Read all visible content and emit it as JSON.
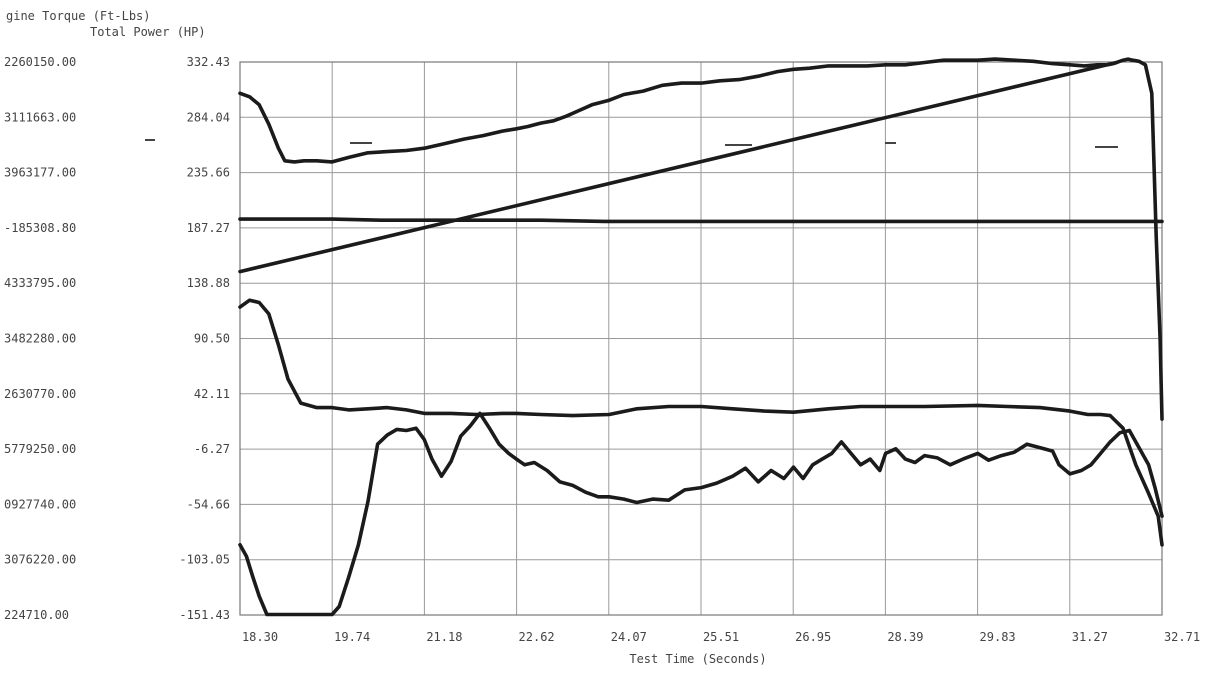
{
  "chart_data": {
    "type": "line",
    "title": "",
    "xlabel": "Test Time (Seconds)",
    "ylabel_left": "gine Torque (Ft-Lbs)",
    "ylabel_right": "Total Power (HP)",
    "x_ticks": [
      "18.30",
      "19.74",
      "21.18",
      "22.62",
      "24.07",
      "25.51",
      "26.95",
      "28.39",
      "29.83",
      "31.27",
      "32.71"
    ],
    "xlim": [
      18.3,
      32.71
    ],
    "torque_ticks": [
      "2260150.00",
      "3111663.00",
      "3963177.00",
      "-185308.80",
      "4333795.00",
      "3482280.00",
      "2630770.00",
      "5779250.00",
      "0927740.00",
      "3076220.00",
      "224710.00"
    ],
    "power_ticks": [
      "332.43",
      "284.04",
      "235.66",
      "187.27",
      "138.88",
      "90.50",
      "42.11",
      "-6.27",
      "-54.66",
      "-103.05",
      "-151.43"
    ],
    "ylim": [
      -151.43,
      332.43
    ],
    "grid": true,
    "line_color": "#1b1b1b",
    "series": [
      {
        "x": [
          18.3,
          18.45,
          18.6,
          18.75,
          18.9,
          19.0,
          19.15,
          19.3,
          19.5,
          19.74,
          20.0,
          20.3,
          20.6,
          20.9,
          21.18,
          21.5,
          21.8,
          22.1,
          22.4,
          22.62,
          22.8,
          23.0,
          23.2,
          23.4,
          23.6,
          23.8,
          24.07,
          24.3,
          24.6,
          24.9,
          25.2,
          25.51,
          25.8,
          26.1,
          26.4,
          26.7,
          26.95,
          27.2,
          27.5,
          27.8,
          28.1,
          28.39,
          28.7,
          29.0,
          29.3,
          29.6,
          29.83,
          30.1,
          30.4,
          30.7,
          31.0,
          31.27,
          31.5,
          31.7,
          31.85,
          31.95,
          32.0,
          32.05,
          32.1,
          32.18,
          32.25,
          32.35,
          32.45,
          32.55,
          32.62,
          32.68,
          32.71
        ],
        "y": [
          305,
          302,
          295,
          278,
          257,
          246,
          245,
          246,
          246,
          245,
          249,
          253,
          254,
          255,
          257,
          261,
          265,
          268,
          272,
          274,
          276,
          279,
          281,
          285,
          290,
          295,
          299,
          304,
          307,
          312,
          314,
          314,
          316,
          317,
          320,
          324,
          326,
          327,
          329,
          329,
          329,
          330,
          330,
          332,
          334,
          334,
          334,
          335,
          334,
          333,
          331,
          330,
          329,
          330,
          330,
          331,
          332,
          333,
          334,
          335,
          334,
          333,
          330,
          305,
          180,
          90,
          20
        ]
      },
      {
        "x": [
          18.3,
          32.0
        ],
        "y": [
          149,
          332
        ]
      },
      {
        "x": [
          18.3,
          19.0,
          19.74,
          20.5,
          21.18,
          22.0,
          23.0,
          24.0,
          25.0,
          26.0,
          27.0,
          28.0,
          29.0,
          30.0,
          31.0,
          32.0,
          32.71
        ],
        "y": [
          195,
          195,
          195,
          194,
          194,
          194,
          194,
          193,
          193,
          193,
          193,
          193,
          193,
          193,
          193,
          193,
          193
        ]
      },
      {
        "x": [
          18.3,
          18.45,
          18.6,
          18.75,
          18.9,
          19.05,
          19.25,
          19.5,
          19.74,
          20.0,
          20.3,
          20.6,
          20.9,
          21.18,
          21.6,
          22.0,
          22.4,
          22.62,
          23.0,
          23.5,
          24.07,
          24.5,
          25.0,
          25.51,
          26.0,
          26.5,
          26.95,
          27.5,
          28.0,
          28.39,
          29.0,
          29.83,
          30.3,
          30.8,
          31.27,
          31.55,
          31.75,
          31.9,
          32.1,
          32.3,
          32.5,
          32.65,
          32.71
        ],
        "y": [
          118,
          124,
          122,
          112,
          85,
          55,
          34,
          30,
          30,
          28,
          29,
          30,
          28,
          25,
          25,
          24,
          25,
          25,
          24,
          23,
          24,
          29,
          31,
          31,
          29,
          27,
          26,
          29,
          31,
          31,
          31,
          32,
          31,
          30,
          27,
          24,
          24,
          23,
          12,
          -20,
          -45,
          -65,
          -90
        ]
      },
      {
        "x": [
          18.3,
          18.4,
          18.5,
          18.6,
          18.72,
          18.9,
          19.2,
          19.5,
          19.74,
          19.85,
          20.0,
          20.15,
          20.3,
          20.45,
          20.6,
          20.75,
          20.9,
          21.05,
          21.18,
          21.3,
          21.45,
          21.6,
          21.75,
          21.9,
          22.05,
          22.2,
          22.35,
          22.5,
          22.62,
          22.75,
          22.9,
          23.1,
          23.3,
          23.5,
          23.7,
          23.9,
          24.07,
          24.3,
          24.5,
          24.75,
          25.0,
          25.25,
          25.51,
          25.75,
          26.0,
          26.2,
          26.4,
          26.6,
          26.8,
          26.95,
          27.1,
          27.25,
          27.4,
          27.55,
          27.7,
          27.85,
          28.0,
          28.15,
          28.3,
          28.39,
          28.55,
          28.7,
          28.85,
          29.0,
          29.2,
          29.4,
          29.6,
          29.83,
          30.0,
          30.2,
          30.4,
          30.6,
          30.8,
          31.0,
          31.1,
          31.27,
          31.45,
          31.6,
          31.75,
          31.9,
          32.05,
          32.2,
          32.35,
          32.5,
          32.6,
          32.71
        ],
        "y": [
          -90,
          -100,
          -118,
          -135,
          -151,
          -151,
          -151,
          -151,
          -151,
          -144,
          -118,
          -90,
          -52,
          -2,
          6,
          11,
          10,
          12,
          2,
          -15,
          -30,
          -17,
          5,
          14,
          25,
          12,
          -2,
          -10,
          -15,
          -20,
          -18,
          -25,
          -35,
          -38,
          -44,
          -48,
          -48,
          -50,
          -53,
          -50,
          -51,
          -42,
          -40,
          -36,
          -30,
          -23,
          -35,
          -25,
          -32,
          -22,
          -32,
          -20,
          -15,
          -10,
          0,
          -10,
          -20,
          -15,
          -25,
          -10,
          -6,
          -15,
          -18,
          -12,
          -14,
          -20,
          -15,
          -10,
          -16,
          -12,
          -9,
          -2,
          -5,
          -8,
          -20,
          -28,
          -25,
          -20,
          -10,
          0,
          8,
          10,
          -5,
          -20,
          -40,
          -65
        ]
      }
    ],
    "annotations_dash_marks": [
      "-",
      "-",
      "-",
      "-",
      "-"
    ]
  }
}
